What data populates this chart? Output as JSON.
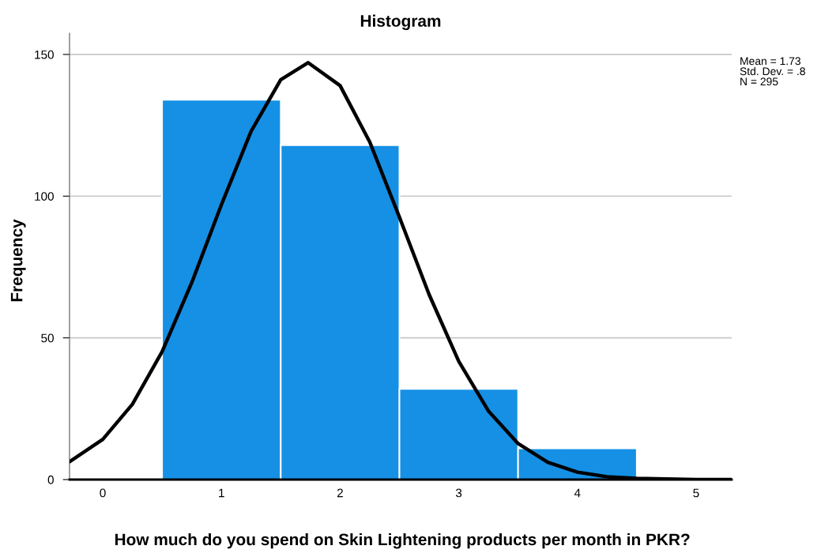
{
  "chart_data": {
    "type": "histogram",
    "title": "Histogram",
    "xlabel": "How much do you spend on Skin Lightening products per month in PKR?",
    "ylabel": "Frequency",
    "bins": [
      0.5,
      1.5,
      2.5,
      3.5,
      4.5
    ],
    "values": [
      134,
      118,
      32,
      11
    ],
    "color": "#1590e5",
    "series": [
      {
        "type": "line",
        "color": "#000000",
        "x": [
          -0.28,
          0,
          0.25,
          0.5,
          0.75,
          1.0,
          1.25,
          1.5,
          1.73,
          2.0,
          2.25,
          2.5,
          2.75,
          3.0,
          3.25,
          3.5,
          3.75,
          4.0,
          4.25,
          4.5,
          5.0,
          5.3
        ],
        "values": [
          6.3,
          14.2,
          26.6,
          45.1,
          69.5,
          97.0,
          122.9,
          141.1,
          147.1,
          139.0,
          119.1,
          92.6,
          65.3,
          41.7,
          24.2,
          12.7,
          6.1,
          2.6,
          1.0,
          0.4,
          0,
          0
        ]
      }
    ],
    "xlim": [
      -0.28,
      5.3
    ],
    "xticks": [
      0,
      1,
      2,
      3,
      4,
      5
    ],
    "ylim": [
      0,
      157.5
    ],
    "yticks": [
      0,
      50,
      100,
      150
    ],
    "grid": "y",
    "annotations": [
      "Mean = 1.73",
      "Std. Dev. = .8",
      "N = 295"
    ]
  }
}
